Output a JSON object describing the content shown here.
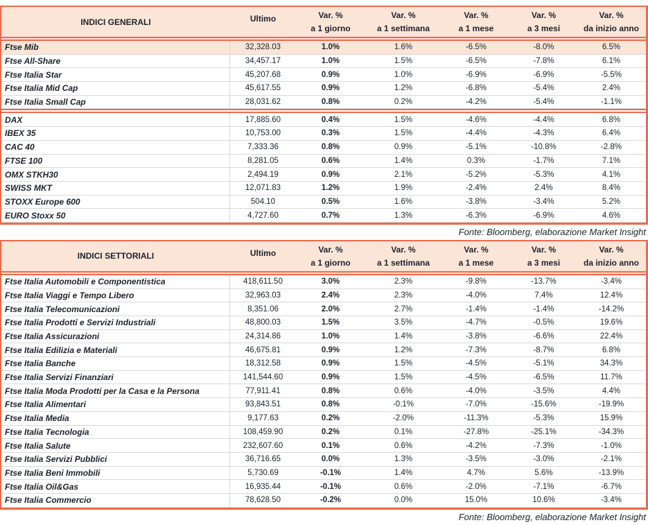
{
  "colors": {
    "accent": "#ee6a4d",
    "header_bg": "#fbe5d6",
    "highlight_row_bg": "#fbe5d6",
    "text": "#1c222e",
    "row_line": "#d9d9d9"
  },
  "tables": [
    {
      "title": "INDICI GENERALI",
      "source": "Fonte: Bloomberg, elaborazione Market Insight",
      "columns": [
        {
          "line1": "Ultimo",
          "line2": ""
        },
        {
          "line1": "Var. %",
          "line2": "a 1 giorno"
        },
        {
          "line1": "Var. %",
          "line2": "a 1 settimana"
        },
        {
          "line1": "Var. %",
          "line2": "a 1 mese"
        },
        {
          "line1": "Var. %",
          "line2": "a 3 mesi"
        },
        {
          "line1": "Var. %",
          "line2": "da inizio anno"
        }
      ],
      "groups": [
        {
          "rows": [
            {
              "highlight": true,
              "cells": [
                "Ftse Mib",
                "32,328.03",
                "1.0%",
                "1.6%",
                "-6.5%",
                "-8.0%",
                "6.5%"
              ]
            },
            {
              "cells": [
                "Ftse All-Share",
                "34,457.17",
                "1.0%",
                "1.5%",
                "-6.5%",
                "-7.8%",
                "6.1%"
              ]
            },
            {
              "cells": [
                "Ftse Italia Star",
                "45,207.68",
                "0.9%",
                "1.0%",
                "-6.9%",
                "-6.9%",
                "-5.5%"
              ]
            },
            {
              "cells": [
                "Ftse Italia Mid Cap",
                "45,617.55",
                "0.9%",
                "1.2%",
                "-6.8%",
                "-5.4%",
                "2.4%"
              ]
            },
            {
              "cells": [
                "Ftse Italia Small Cap",
                "28,031.62",
                "0.8%",
                "0.2%",
                "-4.2%",
                "-5.4%",
                "-1.1%"
              ]
            }
          ]
        },
        {
          "rows": [
            {
              "cells": [
                "DAX",
                "17,885.60",
                "0.4%",
                "1.5%",
                "-4.6%",
                "-4.4%",
                "6.8%"
              ]
            },
            {
              "cells": [
                "IBEX 35",
                "10,753.00",
                "0.3%",
                "1.5%",
                "-4.4%",
                "-4.3%",
                "6.4%"
              ]
            },
            {
              "cells": [
                "CAC 40",
                "7,333.36",
                "0.8%",
                "0.9%",
                "-5.1%",
                "-10.8%",
                "-2.8%"
              ]
            },
            {
              "cells": [
                "FTSE 100",
                "8,281.05",
                "0.6%",
                "1.4%",
                "0.3%",
                "-1.7%",
                "7.1%"
              ]
            },
            {
              "cells": [
                "OMX STKH30",
                "2,494.19",
                "0.9%",
                "2.1%",
                "-5.2%",
                "-5.3%",
                "4.1%"
              ]
            },
            {
              "cells": [
                "SWISS MKT",
                "12,071.83",
                "1.2%",
                "1.9%",
                "-2.4%",
                "2.4%",
                "8.4%"
              ]
            },
            {
              "cells": [
                "STOXX Europe 600",
                "504.10",
                "0.5%",
                "1.6%",
                "-3.8%",
                "-3.4%",
                "5.2%"
              ]
            },
            {
              "cells": [
                "EURO Stoxx 50",
                "4,727.60",
                "0.7%",
                "1.3%",
                "-6.3%",
                "-6.9%",
                "4.6%"
              ]
            }
          ]
        }
      ]
    },
    {
      "title": "INDICI SETTORIALI",
      "source": "Fonte: Bloomberg, elaborazione Market Insight",
      "columns": [
        {
          "line1": "Ultimo",
          "line2": ""
        },
        {
          "line1": "Var. %",
          "line2": "a 1 giorno"
        },
        {
          "line1": "Var. %",
          "line2": "a 1 settimana"
        },
        {
          "line1": "Var. %",
          "line2": "a 1 mese"
        },
        {
          "line1": "Var. %",
          "line2": "a 3 mesi"
        },
        {
          "line1": "Var. %",
          "line2": "da inizio anno"
        }
      ],
      "groups": [
        {
          "rows": [
            {
              "cells": [
                "Ftse Italia Automobili e Componentistica",
                "418,611.50",
                "3.0%",
                "2.3%",
                "-9.8%",
                "-13.7%",
                "-3.4%"
              ]
            },
            {
              "cells": [
                "Ftse Italia Viaggi e Tempo Libero",
                "32,963.03",
                "2.4%",
                "2.3%",
                "-4.0%",
                "7.4%",
                "12.4%"
              ]
            },
            {
              "cells": [
                "Ftse Italia Telecomunicazioni",
                "8,351.06",
                "2.0%",
                "2.7%",
                "-1.4%",
                "-1.4%",
                "-14.2%"
              ]
            },
            {
              "cells": [
                "Ftse Italia Prodotti e Servizi Industriali",
                "48,800.03",
                "1.5%",
                "3.5%",
                "-4.7%",
                "-0.5%",
                "19.6%"
              ]
            },
            {
              "cells": [
                "Ftse Italia Assicurazioni",
                "24,314.86",
                "1.0%",
                "1.4%",
                "-3.8%",
                "-6.6%",
                "22.4%"
              ]
            },
            {
              "cells": [
                "Ftse Italia Edilizia e Materiali",
                "46,675.81",
                "0.9%",
                "1.2%",
                "-7.3%",
                "-8.7%",
                "6.8%"
              ]
            },
            {
              "cells": [
                "Ftse Italia Banche",
                "18,312.58",
                "0.9%",
                "1.5%",
                "-4.5%",
                "-5.1%",
                "34.3%"
              ]
            },
            {
              "cells": [
                "Ftse Italia Servizi Finanziari",
                "141,544.60",
                "0.9%",
                "1.5%",
                "-4.5%",
                "-6.5%",
                "11.7%"
              ]
            },
            {
              "cells": [
                "Ftse Italia Moda Prodotti per la Casa e la Persona",
                "77,911.41",
                "0.8%",
                "0.6%",
                "-4.0%",
                "-3.5%",
                "4.4%"
              ]
            },
            {
              "cells": [
                "Ftse Italia Alimentari",
                "93,843.51",
                "0.8%",
                "-0.1%",
                "-7.0%",
                "-15.6%",
                "-19.9%"
              ]
            },
            {
              "cells": [
                "Ftse Italia Media",
                "9,177.63",
                "0.2%",
                "-2.0%",
                "-11.3%",
                "-5.3%",
                "15.9%"
              ]
            },
            {
              "cells": [
                "Ftse Italia Tecnologia",
                "108,459.90",
                "0.2%",
                "0.1%",
                "-27.8%",
                "-25.1%",
                "-34.3%"
              ]
            },
            {
              "cells": [
                "Ftse Italia Salute",
                "232,607.60",
                "0.1%",
                "0.6%",
                "-4.2%",
                "-7.3%",
                "-1.0%"
              ]
            },
            {
              "cells": [
                "Ftse Italia Servizi Pubblici",
                "36,716.65",
                "0.0%",
                "1.3%",
                "-3.5%",
                "-3.0%",
                "-2.1%"
              ]
            },
            {
              "cells": [
                "Ftse Italia Beni Immobili",
                "5,730.69",
                "-0.1%",
                "1.4%",
                "4.7%",
                "5.6%",
                "-13.9%"
              ]
            },
            {
              "cells": [
                "Ftse Italia Oil&Gas",
                "16,935.44",
                "-0.1%",
                "0.6%",
                "-2.0%",
                "-7.1%",
                "-6.7%"
              ]
            },
            {
              "cells": [
                "Ftse Italia Commercio",
                "78,628.50",
                "-0.2%",
                "0.0%",
                "15.0%",
                "10.6%",
                "-3.4%"
              ]
            }
          ]
        }
      ]
    }
  ]
}
